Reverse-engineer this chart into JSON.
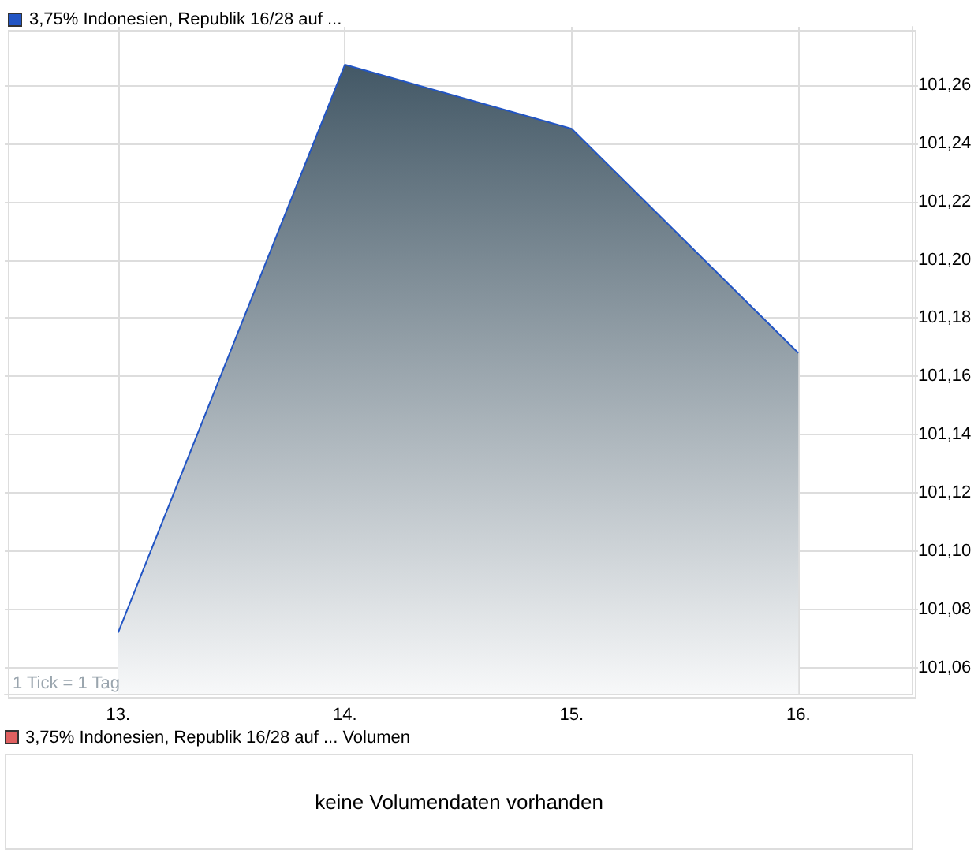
{
  "chart_data": [
    {
      "type": "area",
      "series": [
        {
          "name": "3,75% Indonesien, Republik 16/28 auf ...",
          "color": "#2255c4",
          "values": [
            101.072,
            101.267,
            101.245,
            101.168
          ]
        }
      ],
      "x": [
        13,
        14,
        15,
        16
      ],
      "xlim": [
        12.5,
        16.5
      ],
      "xticks": [
        {
          "value": 13,
          "label": "13."
        },
        {
          "value": 14,
          "label": "14."
        },
        {
          "value": 15,
          "label": "15."
        },
        {
          "value": 16,
          "label": "16."
        }
      ],
      "ylim": [
        101.051,
        101.28
      ],
      "yticks": [
        {
          "value": 101.06,
          "label": "101,06"
        },
        {
          "value": 101.08,
          "label": "101,08"
        },
        {
          "value": 101.1,
          "label": "101,10"
        },
        {
          "value": 101.12,
          "label": "101,12"
        },
        {
          "value": 101.14,
          "label": "101,14"
        },
        {
          "value": 101.16,
          "label": "101,16"
        },
        {
          "value": 101.18,
          "label": "101,18"
        },
        {
          "value": 101.2,
          "label": "101,20"
        },
        {
          "value": 101.22,
          "label": "101,22"
        },
        {
          "value": 101.24,
          "label": "101,24"
        },
        {
          "value": 101.26,
          "label": "101,26"
        }
      ],
      "grid": true,
      "legend": "top left",
      "marker": "none",
      "annotations": [
        "1 Tick = 1 Tag"
      ]
    },
    {
      "type": "other",
      "title": "3,75% Indonesien, Republik 16/28 auf ... Volumen",
      "annotations": [
        "keine Volumendaten vorhanden"
      ]
    }
  ]
}
